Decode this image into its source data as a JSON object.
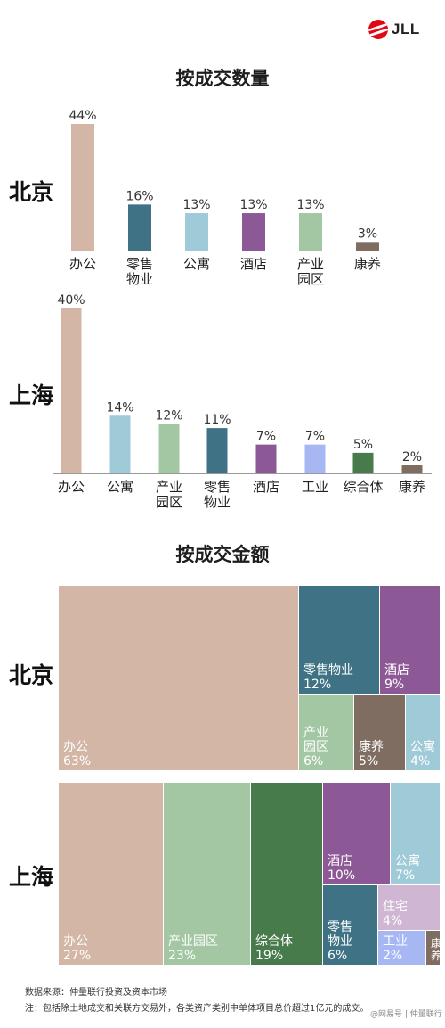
{
  "logo": {
    "text": "JLL"
  },
  "colors": {
    "办公": "#d3b6a5",
    "零售物业": "#3f7284",
    "公寓": "#9fcad8",
    "酒店": "#8d5896",
    "产业园区": "#a3c7a3",
    "康养": "#7f6d61",
    "工业": "#a6b7f4",
    "综合体": "#477b4b",
    "住宅": "#cfb7d4"
  },
  "count_section": {
    "title": "按成交数量"
  },
  "amount_section": {
    "title": "按成交金额"
  },
  "chart_data": [
    {
      "type": "bar",
      "title": "按成交数量",
      "city": "北京",
      "categories": [
        "办公",
        "零售物业",
        "公寓",
        "酒店",
        "产业园区",
        "康养"
      ],
      "category_labels": [
        [
          "办公"
        ],
        [
          "零售",
          "物业"
        ],
        [
          "公寓"
        ],
        [
          "酒店"
        ],
        [
          "产业",
          "园区"
        ],
        [
          "康养"
        ]
      ],
      "values": [
        44,
        16,
        13,
        13,
        13,
        3
      ],
      "value_labels": [
        "44%",
        "16%",
        "13%",
        "13%",
        "13%",
        "3%"
      ],
      "unit": "%"
    },
    {
      "type": "bar",
      "city": "上海",
      "categories": [
        "办公",
        "公寓",
        "产业园区",
        "零售物业",
        "酒店",
        "工业",
        "综合体",
        "康养"
      ],
      "category_labels": [
        [
          "办公"
        ],
        [
          "公寓"
        ],
        [
          "产业",
          "园区"
        ],
        [
          "零售",
          "物业"
        ],
        [
          "酒店"
        ],
        [
          "工业"
        ],
        [
          "综合体"
        ],
        [
          "康养"
        ]
      ],
      "values": [
        40,
        14,
        12,
        11,
        7,
        7,
        5,
        2
      ],
      "value_labels": [
        "40%",
        "14%",
        "12%",
        "11%",
        "7%",
        "7%",
        "5%",
        "2%"
      ],
      "unit": "%"
    },
    {
      "type": "treemap",
      "title": "按成交金额",
      "city": "北京",
      "items": [
        {
          "name": "办公",
          "label": [
            "办公"
          ],
          "value": 63,
          "value_label": "63%"
        },
        {
          "name": "零售物业",
          "label": [
            "零售物业"
          ],
          "value": 12,
          "value_label": "12%"
        },
        {
          "name": "酒店",
          "label": [
            "酒店"
          ],
          "value": 9,
          "value_label": "9%"
        },
        {
          "name": "产业园区",
          "label": [
            "产业",
            "园区"
          ],
          "value": 6,
          "value_label": "6%"
        },
        {
          "name": "康养",
          "label": [
            "康养"
          ],
          "value": 5,
          "value_label": "5%"
        },
        {
          "name": "公寓",
          "label": [
            "公寓"
          ],
          "value": 4,
          "value_label": "4%"
        }
      ]
    },
    {
      "type": "treemap",
      "city": "上海",
      "items": [
        {
          "name": "办公",
          "label": [
            "办公"
          ],
          "value": 27,
          "value_label": "27%"
        },
        {
          "name": "产业园区",
          "label": [
            "产业园区"
          ],
          "value": 23,
          "value_label": "23%"
        },
        {
          "name": "综合体",
          "label": [
            "综合体"
          ],
          "value": 19,
          "value_label": "19%"
        },
        {
          "name": "酒店",
          "label": [
            "酒店"
          ],
          "value": 10,
          "value_label": "10%"
        },
        {
          "name": "公寓",
          "label": [
            "公寓"
          ],
          "value": 7,
          "value_label": "7%"
        },
        {
          "name": "零售物业",
          "label": [
            "零售",
            "物业"
          ],
          "value": 6,
          "value_label": "6%"
        },
        {
          "name": "住宅",
          "label": [
            "住宅"
          ],
          "value": 4,
          "value_label": "4%"
        },
        {
          "name": "工业",
          "label": [
            "工业"
          ],
          "value": 2,
          "value_label": "2%"
        },
        {
          "name": "康养",
          "label": [
            "康",
            "养"
          ],
          "value": 1,
          "value_label": ""
        }
      ]
    }
  ],
  "footer": {
    "source": "数据来源：仲量联行投资及资本市场",
    "note": "注：包括除土地成交和关联方交易外，各类资产类别中单体项目总价超过1亿元的成交。",
    "watermark": "@网易号 | 仲量联行"
  }
}
